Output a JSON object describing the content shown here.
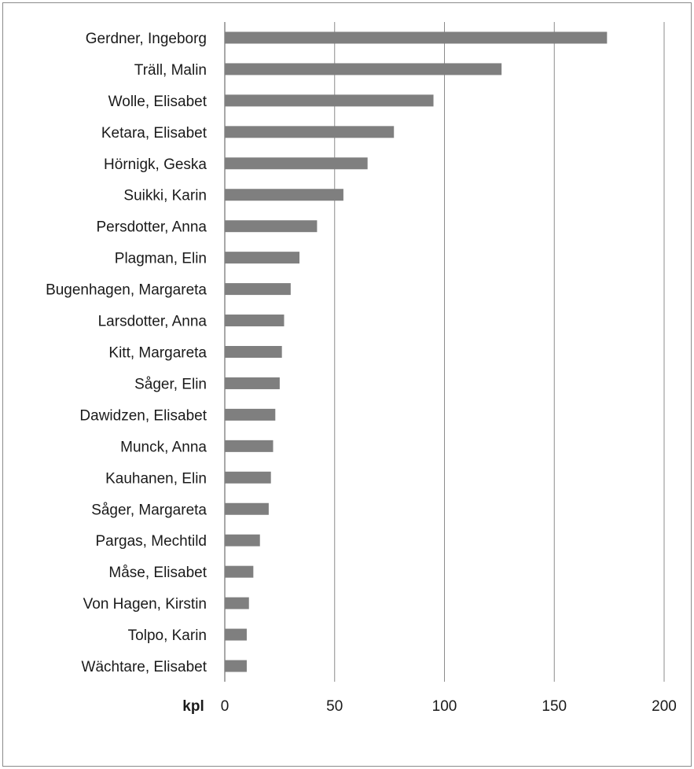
{
  "chart_data": {
    "type": "bar",
    "orientation": "horizontal",
    "categories": [
      "Gerdner, Ingeborg",
      "Träll, Malin",
      "Wolle, Elisabet",
      "Ketara, Elisabet",
      "Hörnigk, Geska",
      "Suikki, Karin",
      "Persdotter, Anna",
      "Plagman, Elin",
      "Bugenhagen, Margareta",
      "Larsdotter, Anna",
      "Kitt, Margareta",
      "Såger, Elin",
      "Dawidzen, Elisabet",
      "Munck, Anna",
      "Kauhanen, Elin",
      "Såger, Margareta",
      "Pargas, Mechtild",
      "Måse, Elisabet",
      "Von Hagen, Kirstin",
      "Tolpo, Karin",
      "Wächtare, Elisabet"
    ],
    "values": [
      174,
      126,
      95,
      77,
      65,
      54,
      42,
      34,
      30,
      27,
      26,
      25,
      23,
      22,
      21,
      20,
      16,
      13,
      11,
      10,
      10
    ],
    "xlabel": "kpl",
    "xlim": [
      0,
      200
    ],
    "xticks": [
      0,
      50,
      100,
      150,
      200
    ],
    "grid": "vertical",
    "legend": "none",
    "bar_color": "#7f7f7f",
    "grid_color": "#8c8c8c"
  }
}
